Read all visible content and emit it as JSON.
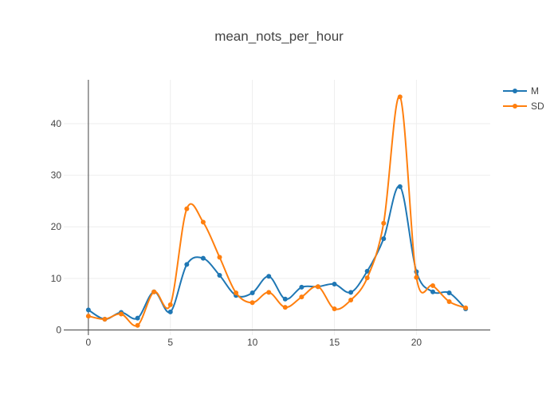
{
  "chart_data": {
    "type": "line",
    "title": "mean_nots_per_hour",
    "xlabel": "",
    "ylabel": "",
    "x": [
      0,
      1,
      2,
      3,
      4,
      5,
      6,
      7,
      8,
      9,
      10,
      11,
      12,
      13,
      14,
      15,
      16,
      17,
      18,
      19,
      20,
      21,
      22,
      23
    ],
    "xlim": [
      -1.5,
      24.5
    ],
    "ylim": [
      -1,
      48.5
    ],
    "xticks": [
      0,
      5,
      10,
      15,
      20
    ],
    "yticks": [
      0,
      10,
      20,
      30,
      40
    ],
    "grid": true,
    "legend_position": "top-right",
    "line_shape": "spline",
    "series": [
      {
        "name": "M",
        "color": "#1f77b4",
        "values": [
          3.9,
          2.1,
          3.4,
          2.3,
          7.4,
          3.5,
          12.7,
          13.9,
          10.6,
          6.7,
          7.2,
          10.4,
          6.0,
          8.3,
          8.4,
          8.9,
          7.3,
          11.4,
          17.7,
          27.8,
          11.3,
          7.4,
          7.2,
          4.1
        ]
      },
      {
        "name": "SD",
        "color": "#ff7f0e",
        "values": [
          2.7,
          2.1,
          3.1,
          0.9,
          7.4,
          4.9,
          23.5,
          20.9,
          14.1,
          7.2,
          5.3,
          7.3,
          4.4,
          6.4,
          8.4,
          4.1,
          5.8,
          10.1,
          20.7,
          45.2,
          10.2,
          8.6,
          5.5,
          4.3
        ]
      }
    ]
  }
}
